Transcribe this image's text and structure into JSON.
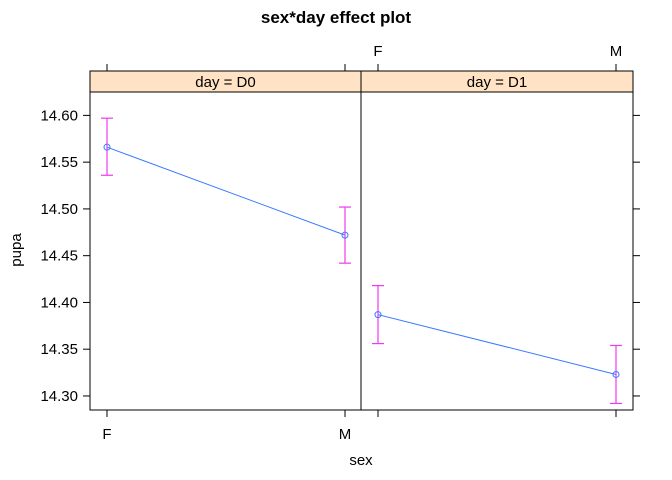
{
  "chart_data": {
    "type": "line",
    "title": "sex*day effect plot",
    "xlabel": "sex",
    "ylabel": "pupa",
    "categories": [
      "F",
      "M"
    ],
    "ylim": [
      14.285,
      14.625
    ],
    "yticks": [
      14.3,
      14.35,
      14.4,
      14.45,
      14.5,
      14.55,
      14.6
    ],
    "ytick_labels": [
      "14.30",
      "14.35",
      "14.40",
      "14.45",
      "14.50",
      "14.55",
      "14.60"
    ],
    "panels": [
      {
        "strip": "day = D0",
        "values": [
          14.566,
          14.472
        ],
        "lower": [
          14.536,
          14.442
        ],
        "upper": [
          14.597,
          14.502
        ]
      },
      {
        "strip": "day = D1",
        "values": [
          14.387,
          14.323
        ],
        "lower": [
          14.356,
          14.292
        ],
        "upper": [
          14.418,
          14.354
        ]
      }
    ],
    "colors": {
      "line": "#3a7bff",
      "errorbar": "#ee3aee",
      "strip_bg": "#ffe3c4",
      "axis": "#000000"
    }
  }
}
